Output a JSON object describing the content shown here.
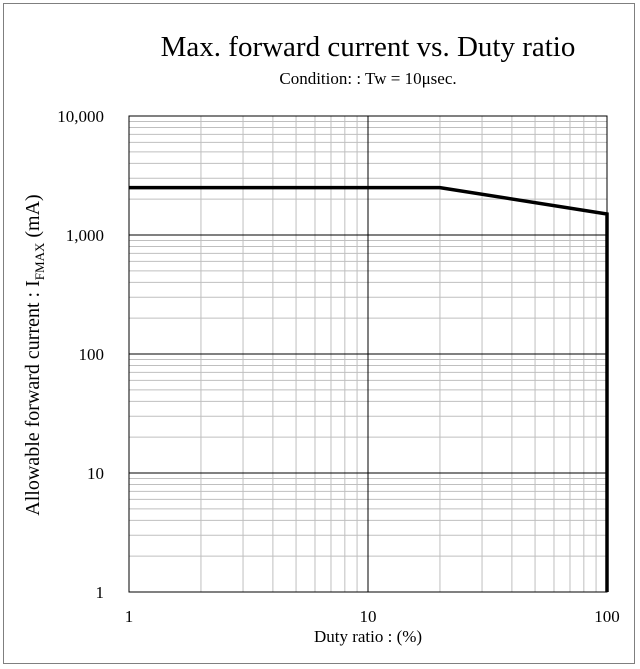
{
  "chart_data": {
    "type": "line",
    "title": "Max. forward current vs. Duty ratio",
    "subtitle": "Condition: : Tw = 10μsec.",
    "xlabel": "Duty ratio : (%)",
    "ylabel": {
      "prefix": "Allowable  forward current : I",
      "subscript": "FMAX",
      "suffix": " (mA)"
    },
    "xscale": "log",
    "yscale": "log",
    "xlim": [
      1,
      100
    ],
    "ylim": [
      1,
      10000
    ],
    "x_ticks": [
      {
        "value": 1,
        "label": "1"
      },
      {
        "value": 10,
        "label": "10"
      },
      {
        "value": 100,
        "label": "100"
      }
    ],
    "y_ticks": [
      {
        "value": 1,
        "label": "1"
      },
      {
        "value": 10,
        "label": "10"
      },
      {
        "value": 100,
        "label": "100"
      },
      {
        "value": 1000,
        "label": "1,000"
      },
      {
        "value": 10000,
        "label": "10,000"
      }
    ],
    "grid": true,
    "series": [
      {
        "color": "#000000",
        "points": [
          {
            "x": 1,
            "y": 2500
          },
          {
            "x": 20,
            "y": 2500
          },
          {
            "x": 100,
            "y": 1500
          },
          {
            "x": 100,
            "y": 1
          }
        ]
      }
    ]
  }
}
